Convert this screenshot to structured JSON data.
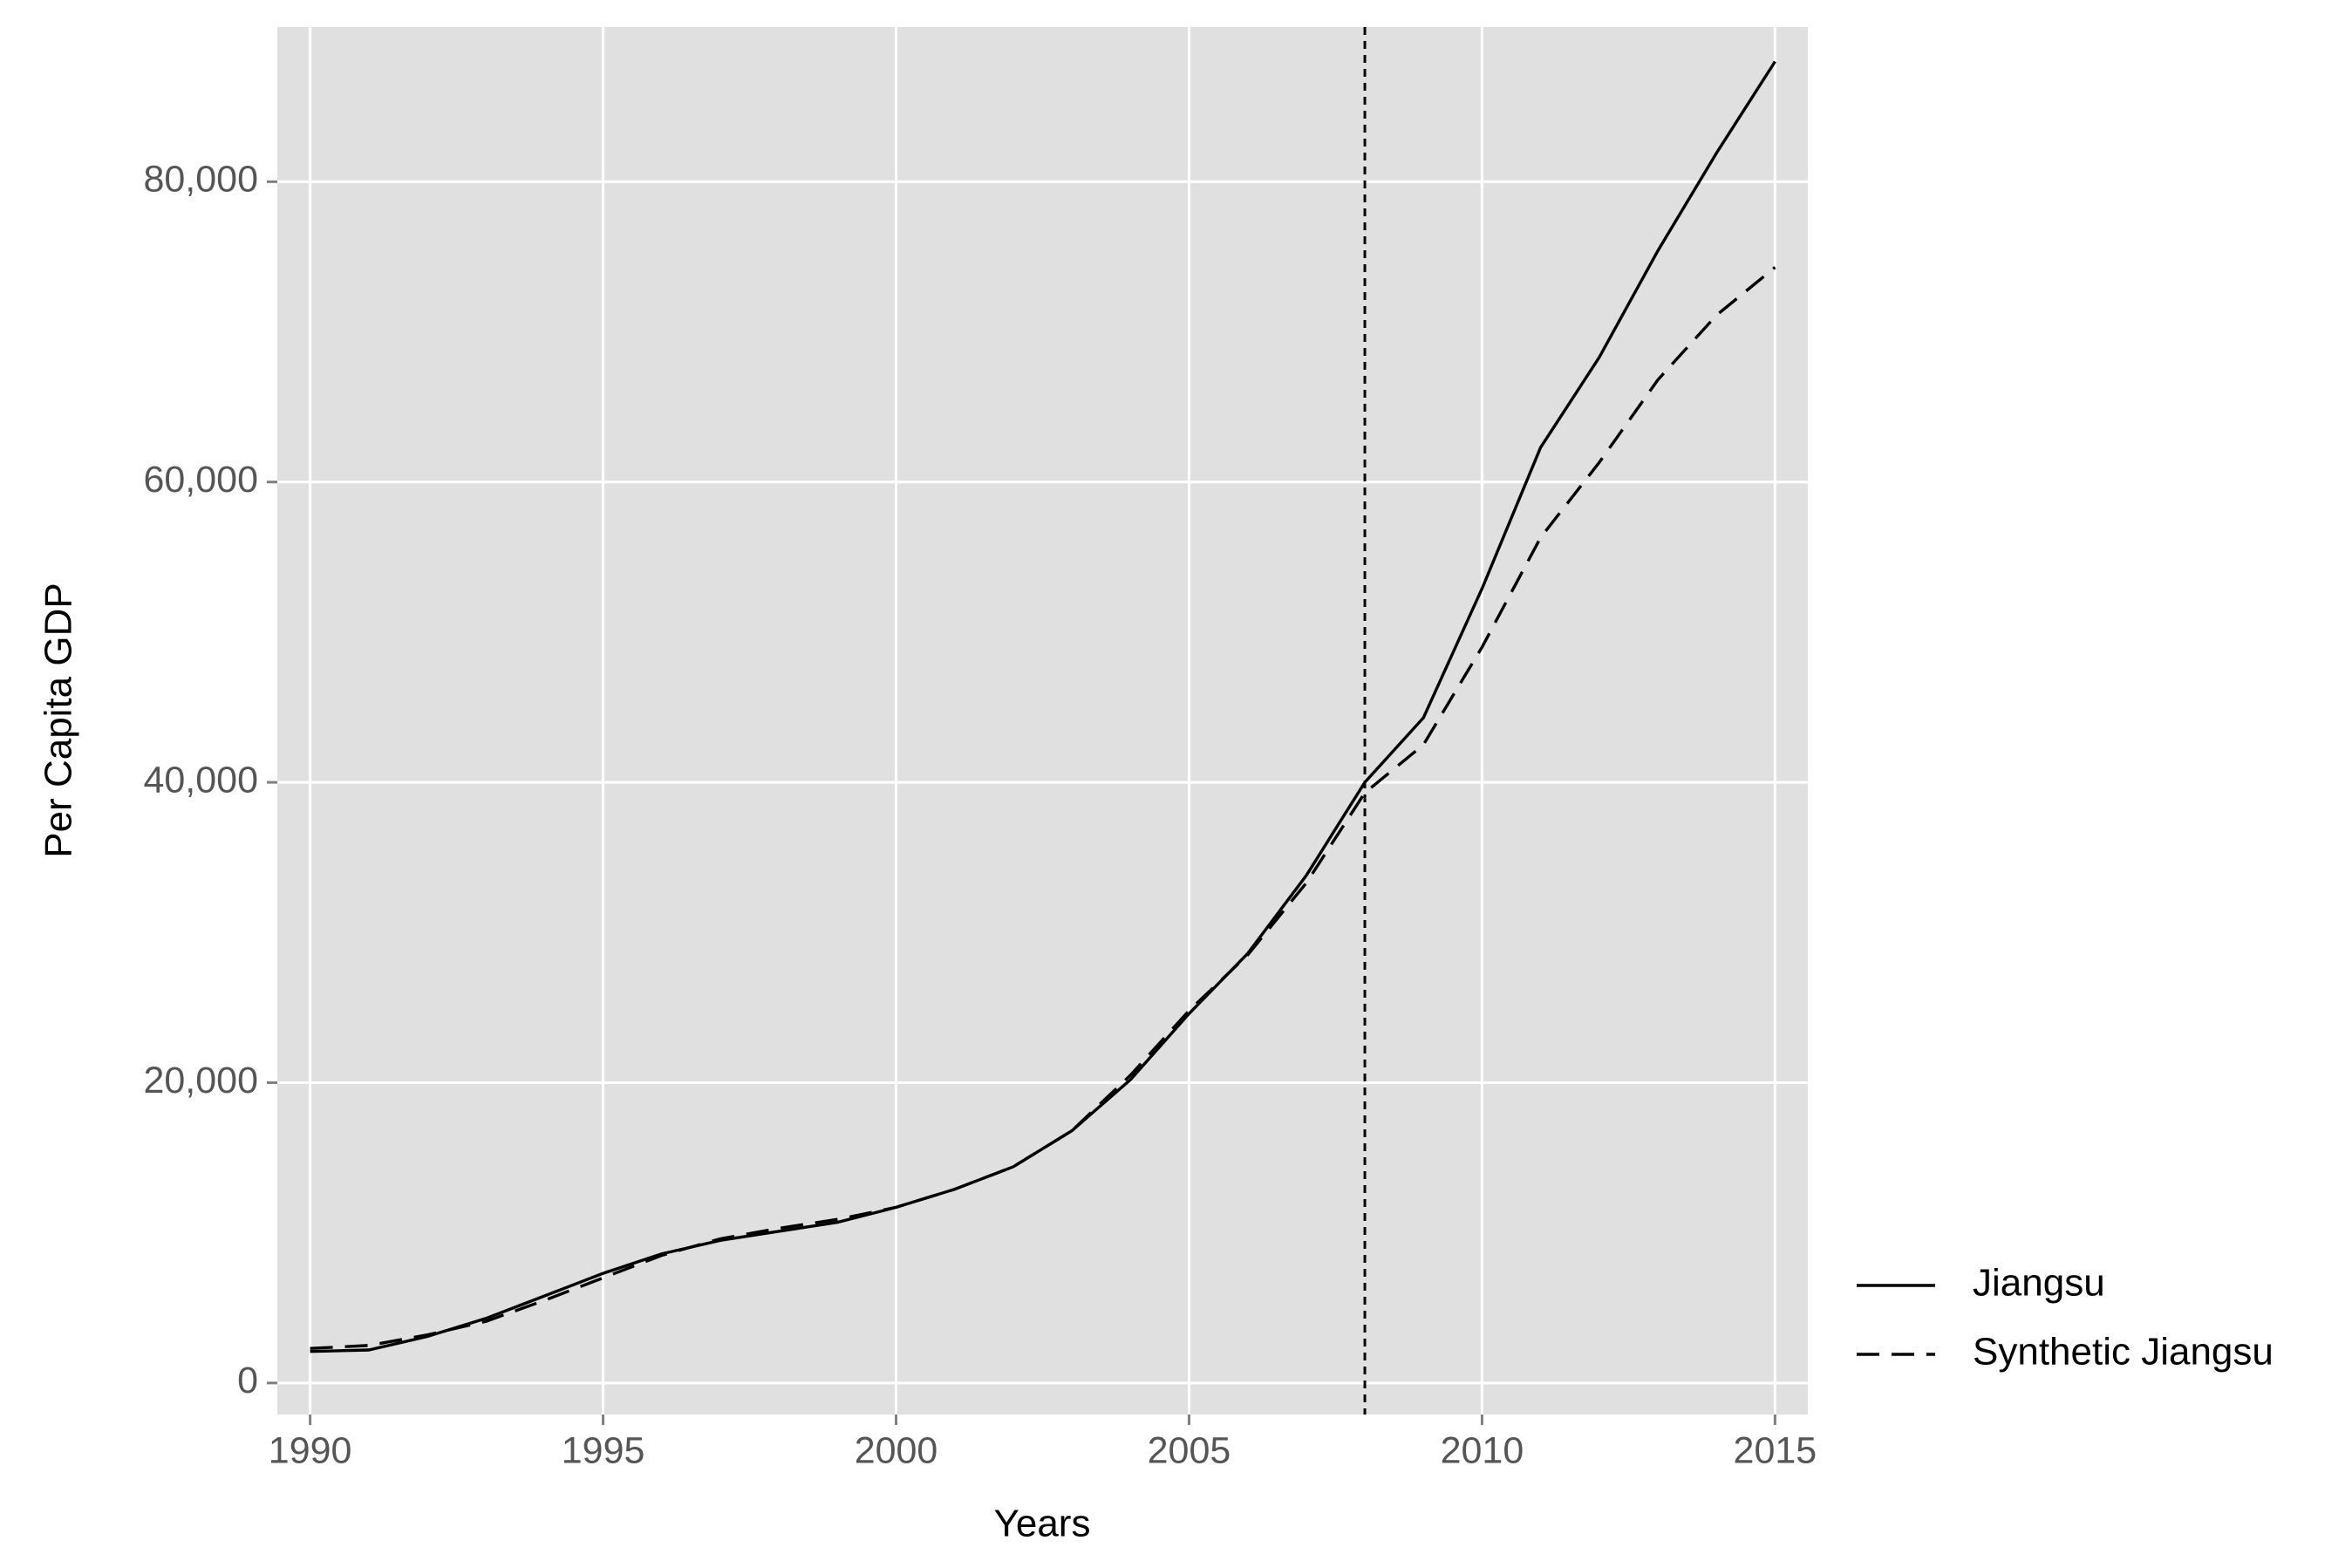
{
  "chart_data": {
    "type": "line",
    "x_label": "Years",
    "y_label": "Per Capita GDP",
    "x": [
      1990,
      1991,
      1992,
      1993,
      1994,
      1995,
      1996,
      1997,
      1998,
      1999,
      2000,
      2001,
      2002,
      2003,
      2004,
      2005,
      2006,
      2007,
      2008,
      2009,
      2010,
      2011,
      2012,
      2013,
      2014,
      2015
    ],
    "series": [
      {
        "name": "Jiangsu",
        "color": "#000000",
        "linestyle": "solid",
        "values": [
          2100,
          2200,
          3100,
          4300,
          5800,
          7300,
          8600,
          9500,
          10100,
          10700,
          11700,
          12900,
          14400,
          16800,
          20200,
          24600,
          28600,
          33800,
          40000,
          44300,
          52900,
          62300,
          68300,
          75400,
          81900,
          88000
        ]
      },
      {
        "name": "Synthetic Jiangsu",
        "color": "#000000",
        "linestyle": "dashed",
        "values": [
          2300,
          2500,
          3200,
          4100,
          5500,
          7000,
          8500,
          9600,
          10300,
          10900,
          11700,
          12900,
          14400,
          16800,
          20500,
          24800,
          28500,
          33300,
          39300,
          42500,
          49000,
          56300,
          61300,
          66800,
          71100,
          74300
        ]
      }
    ],
    "vline": 2008,
    "xlim": [
      1989.44,
      2015.56
    ],
    "xticks": [
      1990,
      1995,
      2000,
      2005,
      2010,
      2015
    ],
    "ylim": [
      -2100,
      90300
    ],
    "yticks": [
      0,
      {
        "value": 20000,
        "label": "20,000"
      },
      {
        "value": 40000,
        "label": "40,000"
      },
      {
        "value": 60000,
        "label": "60,000"
      },
      {
        "value": 80000,
        "label": "80,000"
      }
    ],
    "grid": true,
    "legend": "right"
  }
}
